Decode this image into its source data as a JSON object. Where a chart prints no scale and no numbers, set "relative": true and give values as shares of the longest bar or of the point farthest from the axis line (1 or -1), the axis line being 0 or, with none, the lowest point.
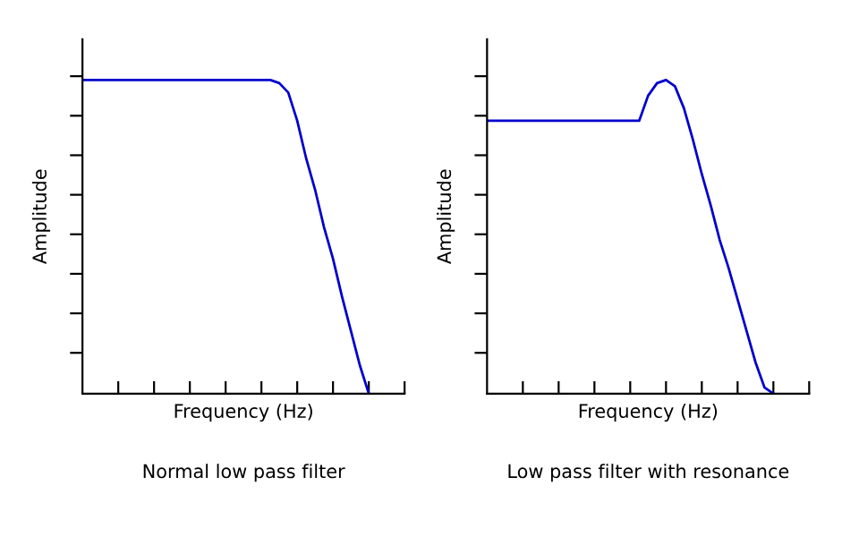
{
  "chart_data": [
    {
      "type": "line",
      "title": "Normal low pass filter",
      "xlabel": "Frequency (Hz)",
      "ylabel": "Amplitude",
      "relative": true,
      "tick_labels": false,
      "categories": [
        null,
        null,
        null,
        null,
        null,
        null,
        null,
        null,
        null,
        null,
        null,
        null,
        null,
        null,
        null,
        null,
        null,
        null,
        null,
        null,
        null,
        null,
        null,
        null,
        null,
        null,
        null,
        null,
        null,
        null,
        null,
        null,
        null,
        null,
        null,
        null,
        null
      ],
      "series": [
        {
          "color": "#0000cc",
          "values": [
            1,
            1,
            1,
            1,
            1,
            1,
            1,
            1,
            1,
            1,
            1,
            1,
            1,
            1,
            1,
            1,
            1,
            1,
            1,
            1,
            1,
            1,
            0.99,
            0.96,
            0.87,
            0.75,
            0.65,
            0.53,
            0.43,
            0.31,
            0.2,
            0.09,
            0,
            null,
            null,
            null,
            null
          ]
        }
      ]
    },
    {
      "type": "line",
      "title": "Low pass filter with resonance",
      "xlabel": "Frequency (Hz)",
      "ylabel": "Amplitude",
      "relative": true,
      "tick_labels": false,
      "categories": [
        null,
        null,
        null,
        null,
        null,
        null,
        null,
        null,
        null,
        null,
        null,
        null,
        null,
        null,
        null,
        null,
        null,
        null,
        null,
        null,
        null,
        null,
        null,
        null,
        null,
        null,
        null,
        null,
        null,
        null,
        null,
        null,
        null,
        null,
        null,
        null,
        null
      ],
      "series": [
        {
          "color": "#0000cc",
          "values": [
            0.87,
            0.87,
            0.87,
            0.87,
            0.87,
            0.87,
            0.87,
            0.87,
            0.87,
            0.87,
            0.87,
            0.87,
            0.87,
            0.87,
            0.87,
            0.87,
            0.87,
            0.87,
            0.95,
            0.99,
            1,
            0.98,
            0.91,
            0.81,
            0.7,
            0.6,
            0.49,
            0.4,
            0.3,
            0.2,
            0.1,
            0.02,
            0,
            null,
            null,
            null,
            null
          ]
        }
      ]
    }
  ]
}
